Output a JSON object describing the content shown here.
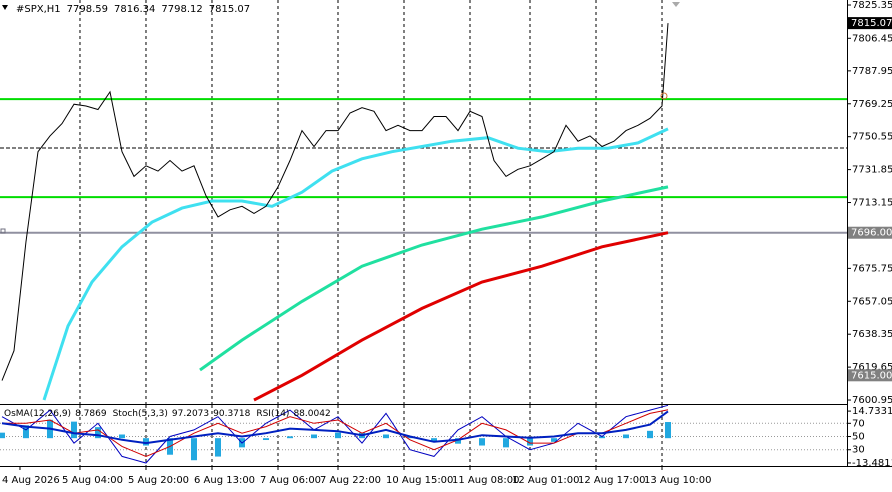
{
  "chart_data": {
    "type": "line",
    "header": {
      "symbol": "#SPX,H1",
      "ohlc": [
        7798.59,
        7816.34,
        7798.12,
        7815.07
      ]
    },
    "xlim": [
      -0.33,
      140.83
    ],
    "xticks": [
      {
        "value": 3,
        "label": "4 Aug 2026"
      },
      {
        "value": 13,
        "label": "5 Aug 04:00"
      },
      {
        "value": 24,
        "label": "5 Aug 20:00"
      },
      {
        "value": 35,
        "label": "6 Aug 13:00"
      },
      {
        "value": 46,
        "label": "7 Aug 06:00"
      },
      {
        "value": 56,
        "label": "7 Aug 22:00"
      },
      {
        "value": 67,
        "label": "10 Aug 15:00"
      },
      {
        "value": 78,
        "label": "11 Aug 08:00"
      },
      {
        "value": 88,
        "label": "12 Aug 01:00"
      },
      {
        "value": 99,
        "label": "12 Aug 17:00"
      },
      {
        "value": 110,
        "label": "13 Aug 10:00"
      }
    ],
    "ylim": [
      7598.7,
      7828.2
    ],
    "yticks": [
      7825.35,
      7806.45,
      7787.95,
      7769.25,
      7750.55,
      7731.85,
      7713.15,
      7675.75,
      7657.05,
      7638.35,
      7619.65,
      7600.95
    ],
    "price_markers": [
      7815.07,
      {
        "value": 7696,
        "label": "7696.00"
      },
      {
        "value": 7615,
        "label": "7615.00"
      }
    ],
    "price_marker_colors": [
      "#000000",
      "#808080",
      "#808080"
    ],
    "hlines": [
      {
        "value": 7771.9,
        "color": "#00dd00",
        "dash": false
      },
      {
        "value": 7744.1,
        "color": "#000000",
        "dash": true
      },
      {
        "value": 7716.2,
        "color": "#00dd00",
        "dash": false
      },
      {
        "value": 7696,
        "color": "#9090a0",
        "dash": false
      }
    ],
    "series": [
      {
        "name": "#SPX,H1",
        "color": "#000000",
        "width": 1,
        "x": [
          0,
          2,
          4,
          6,
          8,
          10,
          12,
          14,
          16,
          18,
          20,
          22,
          24,
          26,
          28,
          30,
          32,
          34,
          36,
          38,
          40,
          42,
          44,
          46,
          48,
          50,
          52,
          54,
          56,
          58,
          60,
          62,
          64,
          66,
          68,
          70,
          72,
          74,
          76,
          78,
          80,
          82,
          84,
          86,
          88,
          90,
          92,
          94,
          96,
          98,
          100,
          102,
          104,
          106,
          108,
          110,
          111
        ],
        "values": [
          7612,
          7629,
          7691,
          7742,
          7751,
          7758,
          7769,
          7768,
          7766,
          7776,
          7742,
          7728,
          7734,
          7731,
          7737,
          7731,
          7734,
          7717,
          7705,
          7709,
          7711,
          7707,
          7711,
          7722,
          7737,
          7754,
          7745,
          7754,
          7754,
          7764,
          7767,
          7765,
          7754,
          7757,
          7754,
          7754,
          7762,
          7762,
          7754,
          7765,
          7762,
          7737,
          7728,
          7732,
          7734,
          7738,
          7742,
          7757,
          7748,
          7751,
          7745,
          7748,
          7754,
          7757,
          7761,
          7768,
          7815.07
        ]
      },
      {
        "name": "MA fast",
        "color": "#3fe0f0",
        "width": 3,
        "x": [
          7,
          11,
          15,
          20,
          25,
          30,
          35,
          40,
          45,
          50,
          55,
          60,
          65,
          70,
          75,
          81,
          86,
          91,
          96,
          101,
          106,
          111
        ],
        "values": [
          7601,
          7643,
          7668,
          7688,
          7702,
          7710,
          7714,
          7714,
          7711,
          7719,
          7731,
          7738,
          7742,
          7745,
          7748,
          7750,
          7744,
          7742,
          7744,
          7744,
          7747,
          7755
        ]
      },
      {
        "name": "MA medium",
        "color": "#20e0a0",
        "width": 3,
        "x": [
          33,
          40,
          50,
          60,
          70,
          80,
          90,
          100,
          111
        ],
        "values": [
          7618,
          7635,
          7657,
          7677,
          7689,
          7698,
          7705,
          7714,
          7722
        ]
      },
      {
        "name": "MA slow",
        "color": "#e00000",
        "width": 3,
        "x": [
          42,
          50,
          60,
          70,
          80,
          90,
          100,
          111
        ],
        "values": [
          7601,
          7615,
          7635,
          7653,
          7668,
          7677,
          7688,
          7696
        ]
      }
    ],
    "indicators": [
      {
        "name": "OsMA(12,26,9)",
        "values": [
          8.7869
        ]
      },
      {
        "name": "Stoch(5,3,3)",
        "values": [
          97.2073,
          90.3718
        ]
      },
      {
        "name": "RSI(14)",
        "values": [
          88.0042
        ]
      }
    ],
    "osma": {
      "color": "#22a8e0",
      "ylim": [
        -15.14,
        18.05
      ],
      "yticks": [
        -13.4811,
        14.7331
      ],
      "x": [
        0,
        4,
        8,
        12,
        16,
        20,
        24,
        28,
        32,
        36,
        40,
        44,
        48,
        52,
        56,
        60,
        64,
        68,
        72,
        76,
        80,
        84,
        88,
        92,
        96,
        100,
        104,
        108,
        111
      ],
      "values": [
        3,
        7,
        10,
        9,
        6,
        2,
        -4,
        -9,
        -12,
        -10,
        -5,
        -1,
        1,
        2,
        3,
        3,
        2,
        1,
        -2,
        -3,
        -4,
        -5,
        -4,
        -2,
        0,
        1,
        2,
        4,
        8.7869
      ]
    },
    "oscillators": {
      "ylim": [
        5.4,
        97.7
      ],
      "yticks": [
        30,
        50,
        70
      ],
      "x": [
        0,
        4,
        8,
        12,
        16,
        20,
        24,
        28,
        32,
        36,
        40,
        44,
        48,
        52,
        56,
        60,
        64,
        68,
        72,
        76,
        80,
        84,
        88,
        92,
        96,
        100,
        104,
        108,
        111
      ],
      "series": [
        {
          "name": "Stoch main",
          "color": "#0000c0",
          "width": 1,
          "values": [
            80,
            60,
            90,
            40,
            70,
            20,
            10,
            50,
            60,
            80,
            40,
            70,
            90,
            60,
            80,
            40,
            85,
            30,
            20,
            60,
            80,
            50,
            30,
            40,
            70,
            50,
            80,
            90,
            97.2073
          ]
        },
        {
          "name": "Stoch signal",
          "color": "#d00000",
          "width": 1,
          "values": [
            70,
            70,
            75,
            55,
            60,
            35,
            20,
            35,
            55,
            70,
            55,
            65,
            80,
            70,
            75,
            55,
            70,
            45,
            30,
            45,
            70,
            60,
            40,
            40,
            55,
            55,
            70,
            85,
            90.3718
          ]
        },
        {
          "name": "RSI",
          "color": "#0020c0",
          "width": 2,
          "values": [
            70,
            65,
            62,
            55,
            52,
            45,
            40,
            45,
            50,
            55,
            50,
            55,
            62,
            60,
            58,
            52,
            60,
            50,
            42,
            45,
            52,
            50,
            48,
            50,
            55,
            55,
            60,
            68,
            88.0042
          ]
        }
      ]
    }
  }
}
